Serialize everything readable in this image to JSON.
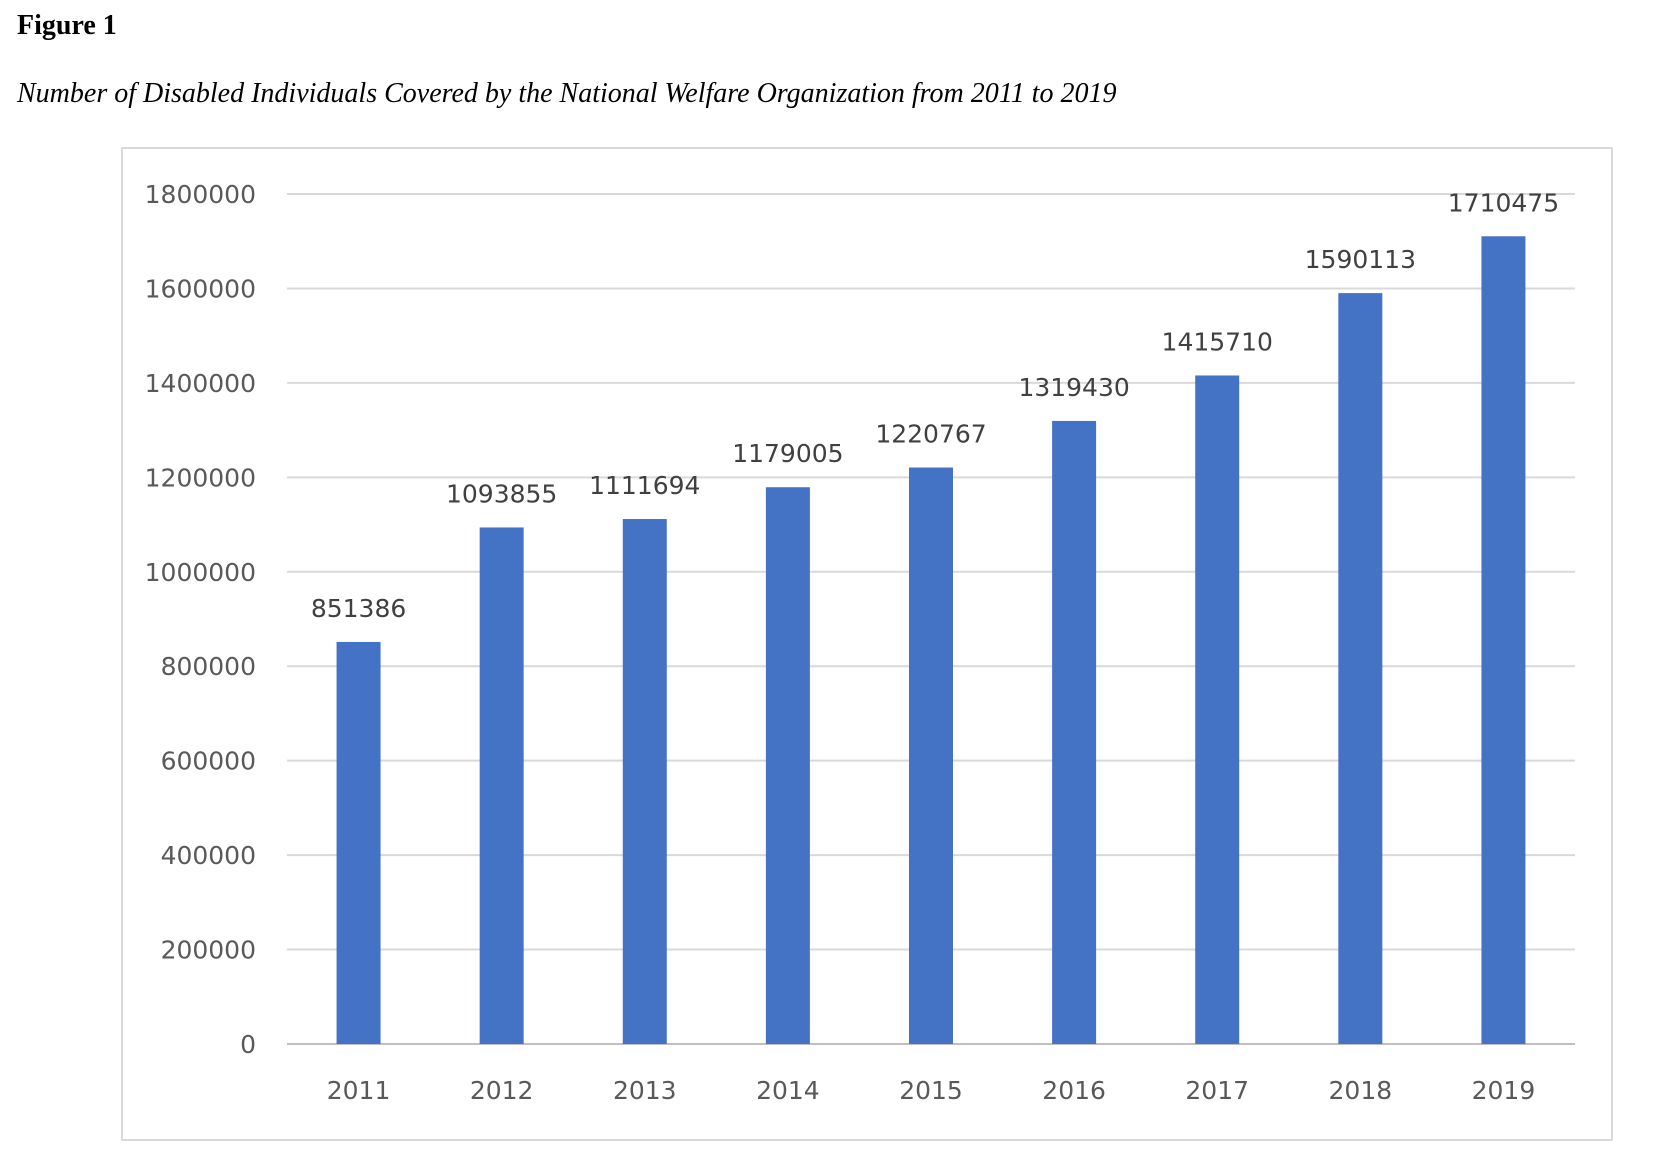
{
  "figure": {
    "label": "Figure 1",
    "caption": "Number of Disabled Individuals Covered by the National Welfare Organization from 2011 to 2019"
  },
  "chart_data": {
    "type": "bar",
    "title": "",
    "xlabel": "",
    "ylabel": "",
    "categories": [
      "2011",
      "2012",
      "2013",
      "2014",
      "2015",
      "2016",
      "2017",
      "2018",
      "2019"
    ],
    "values": [
      851386,
      1093855,
      1111694,
      1179005,
      1220767,
      1319430,
      1415710,
      1590113,
      1710475
    ],
    "data_labels": [
      "851386",
      "1093855",
      "1111694",
      "1179005",
      "1220767",
      "1319430",
      "1415710",
      "1590113",
      "1710475"
    ],
    "ylim": [
      0,
      1800000
    ],
    "yticks": [
      0,
      200000,
      400000,
      600000,
      800000,
      1000000,
      1200000,
      1400000,
      1600000,
      1800000
    ],
    "ytick_labels": [
      "0",
      "200000",
      "400000",
      "600000",
      "800000",
      "1000000",
      "1200000",
      "1400000",
      "1600000",
      "1800000"
    ],
    "grid": true,
    "legend": "none",
    "colors": {
      "bar": "#4472C4",
      "grid": "#d9d9d9",
      "axis": "#bfbfbf"
    }
  }
}
